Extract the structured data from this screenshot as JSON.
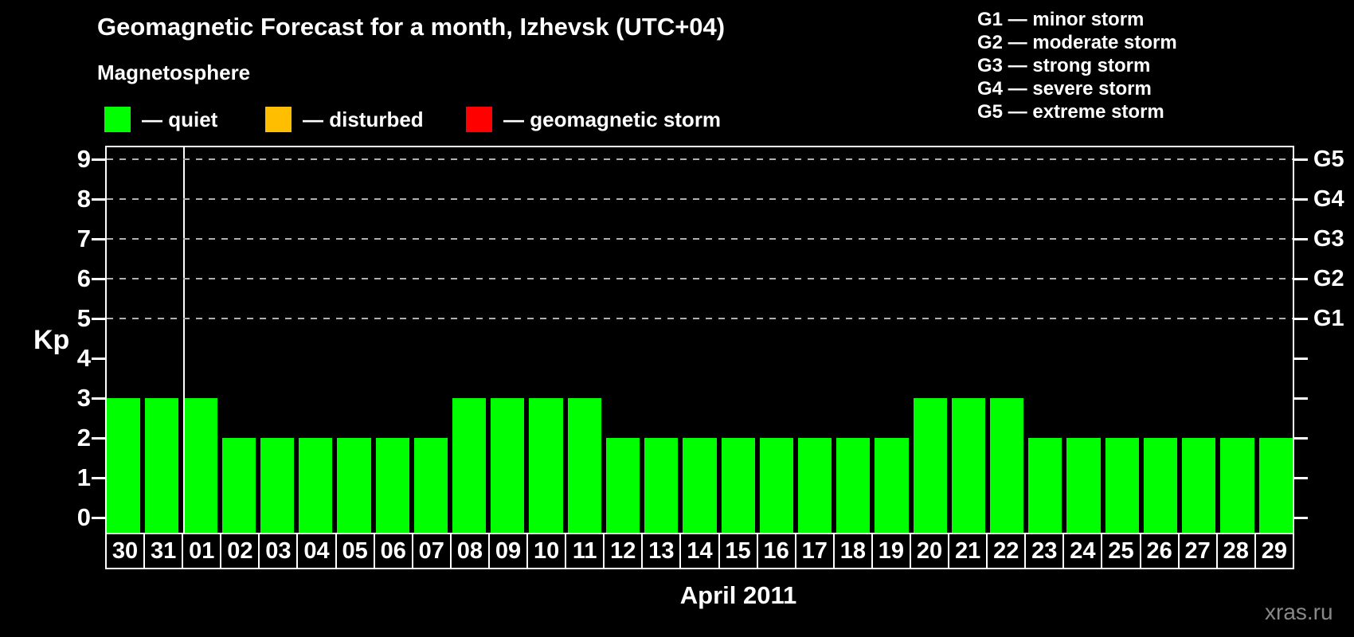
{
  "title": "Geomagnetic Forecast for a month, Izhevsk (UTC+04)",
  "subtitle": "Magnetosphere",
  "legend": {
    "items": [
      {
        "label": "— quiet",
        "color": "#00ff00"
      },
      {
        "label": "— disturbed",
        "color": "#ffbe00"
      },
      {
        "label": "— geomagnetic storm",
        "color": "#ff0000"
      }
    ]
  },
  "storm_scale_legend": [
    "G1 — minor storm",
    "G2 — moderate storm",
    "G3 — strong storm",
    "G4 — severe storm",
    "G5 — extreme storm"
  ],
  "watermark": "xras.ru",
  "chart_data": {
    "type": "bar",
    "title": "Geomagnetic Forecast for a month, Izhevsk (UTC+04)",
    "xlabel": "April 2011",
    "ylabel": "Kp",
    "ylim": [
      0,
      9
    ],
    "categories": [
      "30",
      "31",
      "01",
      "02",
      "03",
      "04",
      "05",
      "06",
      "07",
      "08",
      "09",
      "10",
      "11",
      "12",
      "13",
      "14",
      "15",
      "16",
      "17",
      "18",
      "19",
      "20",
      "21",
      "22",
      "23",
      "24",
      "25",
      "26",
      "27",
      "28",
      "29"
    ],
    "values": [
      3,
      3,
      3,
      2,
      2,
      2,
      2,
      2,
      2,
      3,
      3,
      3,
      3,
      2,
      2,
      2,
      2,
      2,
      2,
      2,
      2,
      3,
      3,
      3,
      2,
      2,
      2,
      2,
      2,
      2,
      2
    ],
    "bar_color": "#00ff00",
    "y_ticks": [
      0,
      1,
      2,
      3,
      4,
      5,
      6,
      7,
      8,
      9
    ],
    "gridlines_at": [
      5,
      6,
      7,
      8,
      9
    ],
    "right_axis_labels": [
      {
        "kp": 5,
        "label": "G1"
      },
      {
        "kp": 6,
        "label": "G2"
      },
      {
        "kp": 7,
        "label": "G3"
      },
      {
        "kp": 8,
        "label": "G4"
      },
      {
        "kp": 9,
        "label": "G5"
      }
    ],
    "separator_after_index": 1,
    "grid": "dashed horizontal lines at storm levels only",
    "legend_position": "top"
  }
}
